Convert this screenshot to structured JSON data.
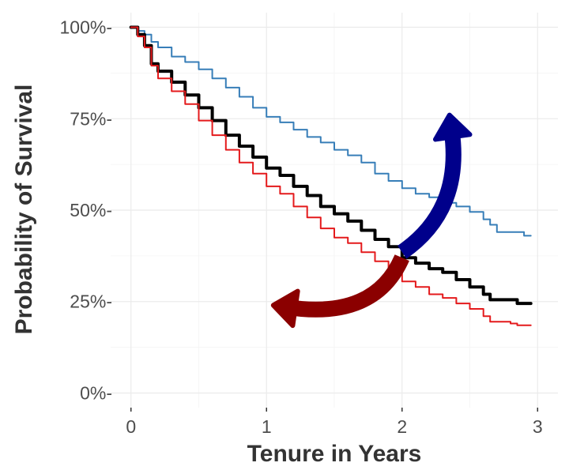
{
  "chart_data": {
    "type": "line",
    "title": "",
    "xlabel": "Tenure in Years",
    "ylabel": "Probability of Survival",
    "xlim": [
      -0.15,
      3.15
    ],
    "ylim": [
      -0.04,
      1.04
    ],
    "x_ticks": [
      0,
      1,
      2,
      3
    ],
    "x_tick_labels": [
      "0",
      "1",
      "2",
      "3"
    ],
    "y_ticks": [
      0,
      0.25,
      0.5,
      0.75,
      1.0
    ],
    "y_tick_labels": [
      "0%-",
      "25%-",
      "50%-",
      "75%-",
      "100%-"
    ],
    "grid": true,
    "legend": "none",
    "series": [
      {
        "color": "#377eb8",
        "stroke_width": 2,
        "points": [
          [
            0,
            1.0
          ],
          [
            0.05,
            0.99
          ],
          [
            0.1,
            0.98
          ],
          [
            0.15,
            0.96
          ],
          [
            0.2,
            0.945
          ],
          [
            0.3,
            0.92
          ],
          [
            0.4,
            0.905
          ],
          [
            0.5,
            0.885
          ],
          [
            0.6,
            0.86
          ],
          [
            0.7,
            0.835
          ],
          [
            0.8,
            0.81
          ],
          [
            0.9,
            0.78
          ],
          [
            1.0,
            0.755
          ],
          [
            1.1,
            0.74
          ],
          [
            1.2,
            0.72
          ],
          [
            1.3,
            0.7
          ],
          [
            1.4,
            0.685
          ],
          [
            1.5,
            0.665
          ],
          [
            1.6,
            0.65
          ],
          [
            1.7,
            0.63
          ],
          [
            1.8,
            0.6
          ],
          [
            1.9,
            0.58
          ],
          [
            2.0,
            0.56
          ],
          [
            2.1,
            0.545
          ],
          [
            2.2,
            0.535
          ],
          [
            2.3,
            0.52
          ],
          [
            2.4,
            0.51
          ],
          [
            2.5,
            0.495
          ],
          [
            2.6,
            0.475
          ],
          [
            2.65,
            0.46
          ],
          [
            2.7,
            0.44
          ],
          [
            2.8,
            0.44
          ],
          [
            2.9,
            0.43
          ],
          [
            2.95,
            0.43
          ]
        ]
      },
      {
        "color": "#000000",
        "stroke_width": 4,
        "points": [
          [
            0,
            1.0
          ],
          [
            0.05,
            0.98
          ],
          [
            0.1,
            0.95
          ],
          [
            0.15,
            0.9
          ],
          [
            0.2,
            0.88
          ],
          [
            0.3,
            0.85
          ],
          [
            0.4,
            0.815
          ],
          [
            0.5,
            0.78
          ],
          [
            0.6,
            0.745
          ],
          [
            0.7,
            0.705
          ],
          [
            0.8,
            0.675
          ],
          [
            0.9,
            0.645
          ],
          [
            1.0,
            0.615
          ],
          [
            1.1,
            0.595
          ],
          [
            1.2,
            0.565
          ],
          [
            1.3,
            0.54
          ],
          [
            1.4,
            0.51
          ],
          [
            1.5,
            0.49
          ],
          [
            1.6,
            0.47
          ],
          [
            1.7,
            0.445
          ],
          [
            1.8,
            0.42
          ],
          [
            1.9,
            0.4
          ],
          [
            2.0,
            0.37
          ],
          [
            2.1,
            0.355
          ],
          [
            2.2,
            0.34
          ],
          [
            2.3,
            0.33
          ],
          [
            2.4,
            0.31
          ],
          [
            2.5,
            0.29
          ],
          [
            2.6,
            0.27
          ],
          [
            2.65,
            0.255
          ],
          [
            2.7,
            0.255
          ],
          [
            2.8,
            0.255
          ],
          [
            2.85,
            0.245
          ],
          [
            2.95,
            0.245
          ]
        ]
      },
      {
        "color": "#e41a1c",
        "stroke_width": 2,
        "points": [
          [
            0,
            1.0
          ],
          [
            0.05,
            0.975
          ],
          [
            0.1,
            0.945
          ],
          [
            0.15,
            0.895
          ],
          [
            0.2,
            0.86
          ],
          [
            0.3,
            0.825
          ],
          [
            0.4,
            0.79
          ],
          [
            0.5,
            0.745
          ],
          [
            0.6,
            0.705
          ],
          [
            0.7,
            0.665
          ],
          [
            0.8,
            0.63
          ],
          [
            0.9,
            0.6
          ],
          [
            1.0,
            0.565
          ],
          [
            1.1,
            0.545
          ],
          [
            1.2,
            0.51
          ],
          [
            1.3,
            0.48
          ],
          [
            1.4,
            0.45
          ],
          [
            1.5,
            0.425
          ],
          [
            1.6,
            0.41
          ],
          [
            1.7,
            0.385
          ],
          [
            1.8,
            0.36
          ],
          [
            1.9,
            0.335
          ],
          [
            2.0,
            0.305
          ],
          [
            2.1,
            0.29
          ],
          [
            2.2,
            0.27
          ],
          [
            2.3,
            0.26
          ],
          [
            2.4,
            0.245
          ],
          [
            2.5,
            0.23
          ],
          [
            2.6,
            0.21
          ],
          [
            2.65,
            0.195
          ],
          [
            2.7,
            0.195
          ],
          [
            2.8,
            0.19
          ],
          [
            2.85,
            0.185
          ],
          [
            2.95,
            0.185
          ]
        ]
      }
    ],
    "annotations": [
      {
        "kind": "curved-arrow",
        "color": "#00008b",
        "from": [
          2.0,
          0.385
        ],
        "control": [
          2.45,
          0.5
        ],
        "to": [
          2.35,
          0.76
        ]
      },
      {
        "kind": "curved-arrow",
        "color": "#8b0000",
        "from": [
          2.0,
          0.37
        ],
        "control": [
          1.8,
          0.2
        ],
        "to": [
          1.05,
          0.24
        ]
      }
    ]
  }
}
